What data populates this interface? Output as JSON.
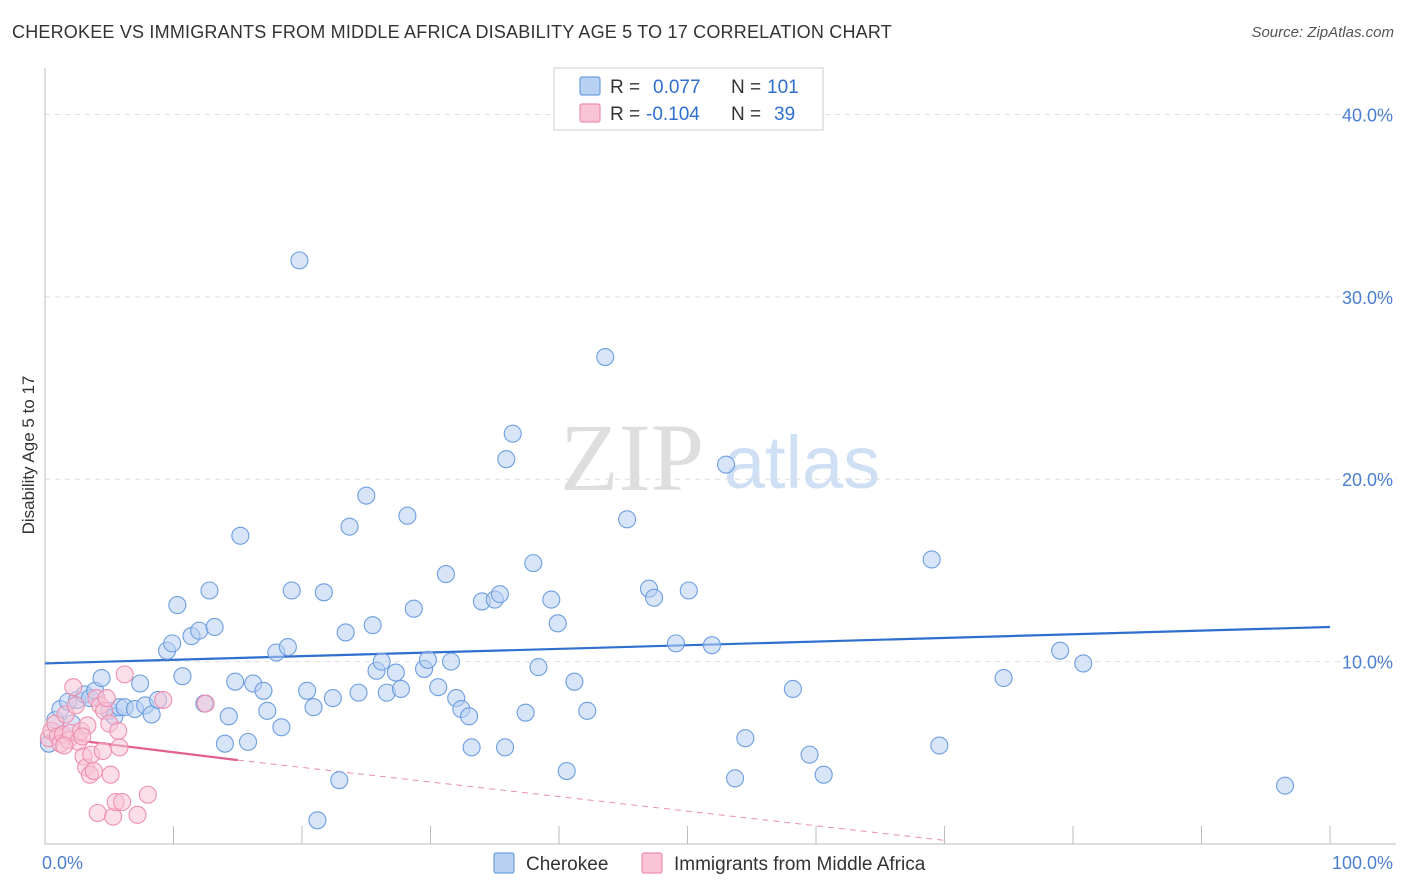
{
  "title": "CHEROKEE VS IMMIGRANTS FROM MIDDLE AFRICA DISABILITY AGE 5 TO 17 CORRELATION CHART",
  "source": "Source: ZipAtlas.com",
  "watermark": {
    "zip": "ZIP",
    "atlas": "atlas"
  },
  "colors": {
    "blue": "#6d9ee0",
    "blue_fill": "#b8d0f2",
    "blue_line": "#2f6fce",
    "pink": "#ee8fb0",
    "pink_fill": "#f8c4d6",
    "pink_line": "#e0608f",
    "tick": "#4a7fd0",
    "grid": "#dddddd"
  },
  "legend": {
    "rows": [
      {
        "r_label": "R =",
        "r_value": "0.077",
        "n_label": "N =",
        "n_value": "101",
        "series": "blue"
      },
      {
        "r_label": "R =",
        "r_value": "-0.104",
        "n_label": "N =",
        "n_value": "39",
        "series": "pink"
      }
    ]
  },
  "bottom_legend": [
    {
      "label": "Cherokee",
      "series": "blue"
    },
    {
      "label": "Immigrants from Middle Africa",
      "series": "pink"
    }
  ],
  "chart_data": {
    "type": "scatter",
    "title": "CHEROKEE VS IMMIGRANTS FROM MIDDLE AFRICA DISABILITY AGE 5 TO 17 CORRELATION CHART",
    "xlabel": "",
    "ylabel": "Disability Age 5 to 17",
    "xlim": [
      0,
      100
    ],
    "ylim": [
      0,
      42
    ],
    "x_tick_labels": [
      "0.0%",
      "100.0%"
    ],
    "y_ticks": [
      10,
      20,
      30,
      40
    ],
    "y_tick_labels": [
      "10.0%",
      "20.0%",
      "30.0%",
      "40.0%"
    ],
    "grid": true,
    "series": [
      {
        "name": "Cherokee",
        "color": "blue",
        "trend": {
          "x": [
            0,
            100
          ],
          "y": [
            9.9,
            11.9
          ]
        },
        "points": [
          [
            0.3,
            5.5
          ],
          [
            0.8,
            6.8
          ],
          [
            1.2,
            7.4
          ],
          [
            1.8,
            7.8
          ],
          [
            2.1,
            6.6
          ],
          [
            2.5,
            7.9
          ],
          [
            3.1,
            8.2
          ],
          [
            3.5,
            8.0
          ],
          [
            3.9,
            8.4
          ],
          [
            4.4,
            9.1
          ],
          [
            5.0,
            7.3
          ],
          [
            5.4,
            7.0
          ],
          [
            5.8,
            7.5
          ],
          [
            6.2,
            7.5
          ],
          [
            7.0,
            7.4
          ],
          [
            7.4,
            8.8
          ],
          [
            7.8,
            7.6
          ],
          [
            8.3,
            7.1
          ],
          [
            8.8,
            7.9
          ],
          [
            9.5,
            10.6
          ],
          [
            9.9,
            11.0
          ],
          [
            10.3,
            13.1
          ],
          [
            10.7,
            9.2
          ],
          [
            11.4,
            11.4
          ],
          [
            12.0,
            11.7
          ],
          [
            12.4,
            7.7
          ],
          [
            12.8,
            13.9
          ],
          [
            13.2,
            11.9
          ],
          [
            14.0,
            5.5
          ],
          [
            14.3,
            7.0
          ],
          [
            14.8,
            8.9
          ],
          [
            15.2,
            16.9
          ],
          [
            15.8,
            5.6
          ],
          [
            16.2,
            8.8
          ],
          [
            17.0,
            8.4
          ],
          [
            17.3,
            7.3
          ],
          [
            18.0,
            10.5
          ],
          [
            18.4,
            6.4
          ],
          [
            18.9,
            10.8
          ],
          [
            19.2,
            13.9
          ],
          [
            19.8,
            32.0
          ],
          [
            20.4,
            8.4
          ],
          [
            20.9,
            7.5
          ],
          [
            21.2,
            1.3
          ],
          [
            21.7,
            13.8
          ],
          [
            22.4,
            8.0
          ],
          [
            22.9,
            3.5
          ],
          [
            23.4,
            11.6
          ],
          [
            23.7,
            17.4
          ],
          [
            24.4,
            8.3
          ],
          [
            25.0,
            19.1
          ],
          [
            25.5,
            12.0
          ],
          [
            25.8,
            9.5
          ],
          [
            26.2,
            10.0
          ],
          [
            26.6,
            8.3
          ],
          [
            27.3,
            9.4
          ],
          [
            27.7,
            8.5
          ],
          [
            28.2,
            18.0
          ],
          [
            28.7,
            12.9
          ],
          [
            29.5,
            9.6
          ],
          [
            29.8,
            10.1
          ],
          [
            30.6,
            8.6
          ],
          [
            31.2,
            14.8
          ],
          [
            31.6,
            10.0
          ],
          [
            32.0,
            8.0
          ],
          [
            32.4,
            7.4
          ],
          [
            33.0,
            7.0
          ],
          [
            33.2,
            5.3
          ],
          [
            34.0,
            13.3
          ],
          [
            35.0,
            13.4
          ],
          [
            35.4,
            13.7
          ],
          [
            35.8,
            5.3
          ],
          [
            35.9,
            21.1
          ],
          [
            36.4,
            22.5
          ],
          [
            37.4,
            7.2
          ],
          [
            38.0,
            15.4
          ],
          [
            38.4,
            9.7
          ],
          [
            39.4,
            13.4
          ],
          [
            39.9,
            12.1
          ],
          [
            40.6,
            4.0
          ],
          [
            41.2,
            8.9
          ],
          [
            42.2,
            7.3
          ],
          [
            43.6,
            26.7
          ],
          [
            45.3,
            17.8
          ],
          [
            47.0,
            14.0
          ],
          [
            47.4,
            13.5
          ],
          [
            49.1,
            11.0
          ],
          [
            50.1,
            13.9
          ],
          [
            51.9,
            10.9
          ],
          [
            53.0,
            20.8
          ],
          [
            53.7,
            3.6
          ],
          [
            54.5,
            5.8
          ],
          [
            58.2,
            8.5
          ],
          [
            59.5,
            4.9
          ],
          [
            60.6,
            3.8
          ],
          [
            69.0,
            15.6
          ],
          [
            69.6,
            5.4
          ],
          [
            74.6,
            9.1
          ],
          [
            79.0,
            10.6
          ],
          [
            80.8,
            9.9
          ],
          [
            96.5,
            3.2
          ]
        ]
      },
      {
        "name": "Immigrants from Middle Africa",
        "color": "pink",
        "trend": {
          "x": [
            0,
            15
          ],
          "y": [
            5.9,
            4.6
          ]
        },
        "trend_dashed": {
          "x": [
            15,
            70
          ],
          "y": [
            4.6,
            0.2
          ]
        },
        "points": [
          [
            0.3,
            5.8
          ],
          [
            0.5,
            6.2
          ],
          [
            0.8,
            6.6
          ],
          [
            1.0,
            5.9
          ],
          [
            1.2,
            5.5
          ],
          [
            1.4,
            6.0
          ],
          [
            1.6,
            7.1
          ],
          [
            1.8,
            5.7
          ],
          [
            2.0,
            6.1
          ],
          [
            2.2,
            8.6
          ],
          [
            2.4,
            7.6
          ],
          [
            2.6,
            5.6
          ],
          [
            2.8,
            6.2
          ],
          [
            3.0,
            4.8
          ],
          [
            3.2,
            4.2
          ],
          [
            3.3,
            6.5
          ],
          [
            3.5,
            3.8
          ],
          [
            3.6,
            4.9
          ],
          [
            3.8,
            4.0
          ],
          [
            4.0,
            8.0
          ],
          [
            4.1,
            1.7
          ],
          [
            4.3,
            7.6
          ],
          [
            4.5,
            5.1
          ],
          [
            4.6,
            7.3
          ],
          [
            4.8,
            8.0
          ],
          [
            5.0,
            6.6
          ],
          [
            5.1,
            3.8
          ],
          [
            5.3,
            1.5
          ],
          [
            5.5,
            2.3
          ],
          [
            5.7,
            6.2
          ],
          [
            5.8,
            5.3
          ],
          [
            6.0,
            2.3
          ],
          [
            6.2,
            9.3
          ],
          [
            7.2,
            1.6
          ],
          [
            8.0,
            2.7
          ],
          [
            9.2,
            7.9
          ],
          [
            12.5,
            7.7
          ],
          [
            1.5,
            5.4
          ],
          [
            2.9,
            5.9
          ]
        ]
      }
    ]
  }
}
